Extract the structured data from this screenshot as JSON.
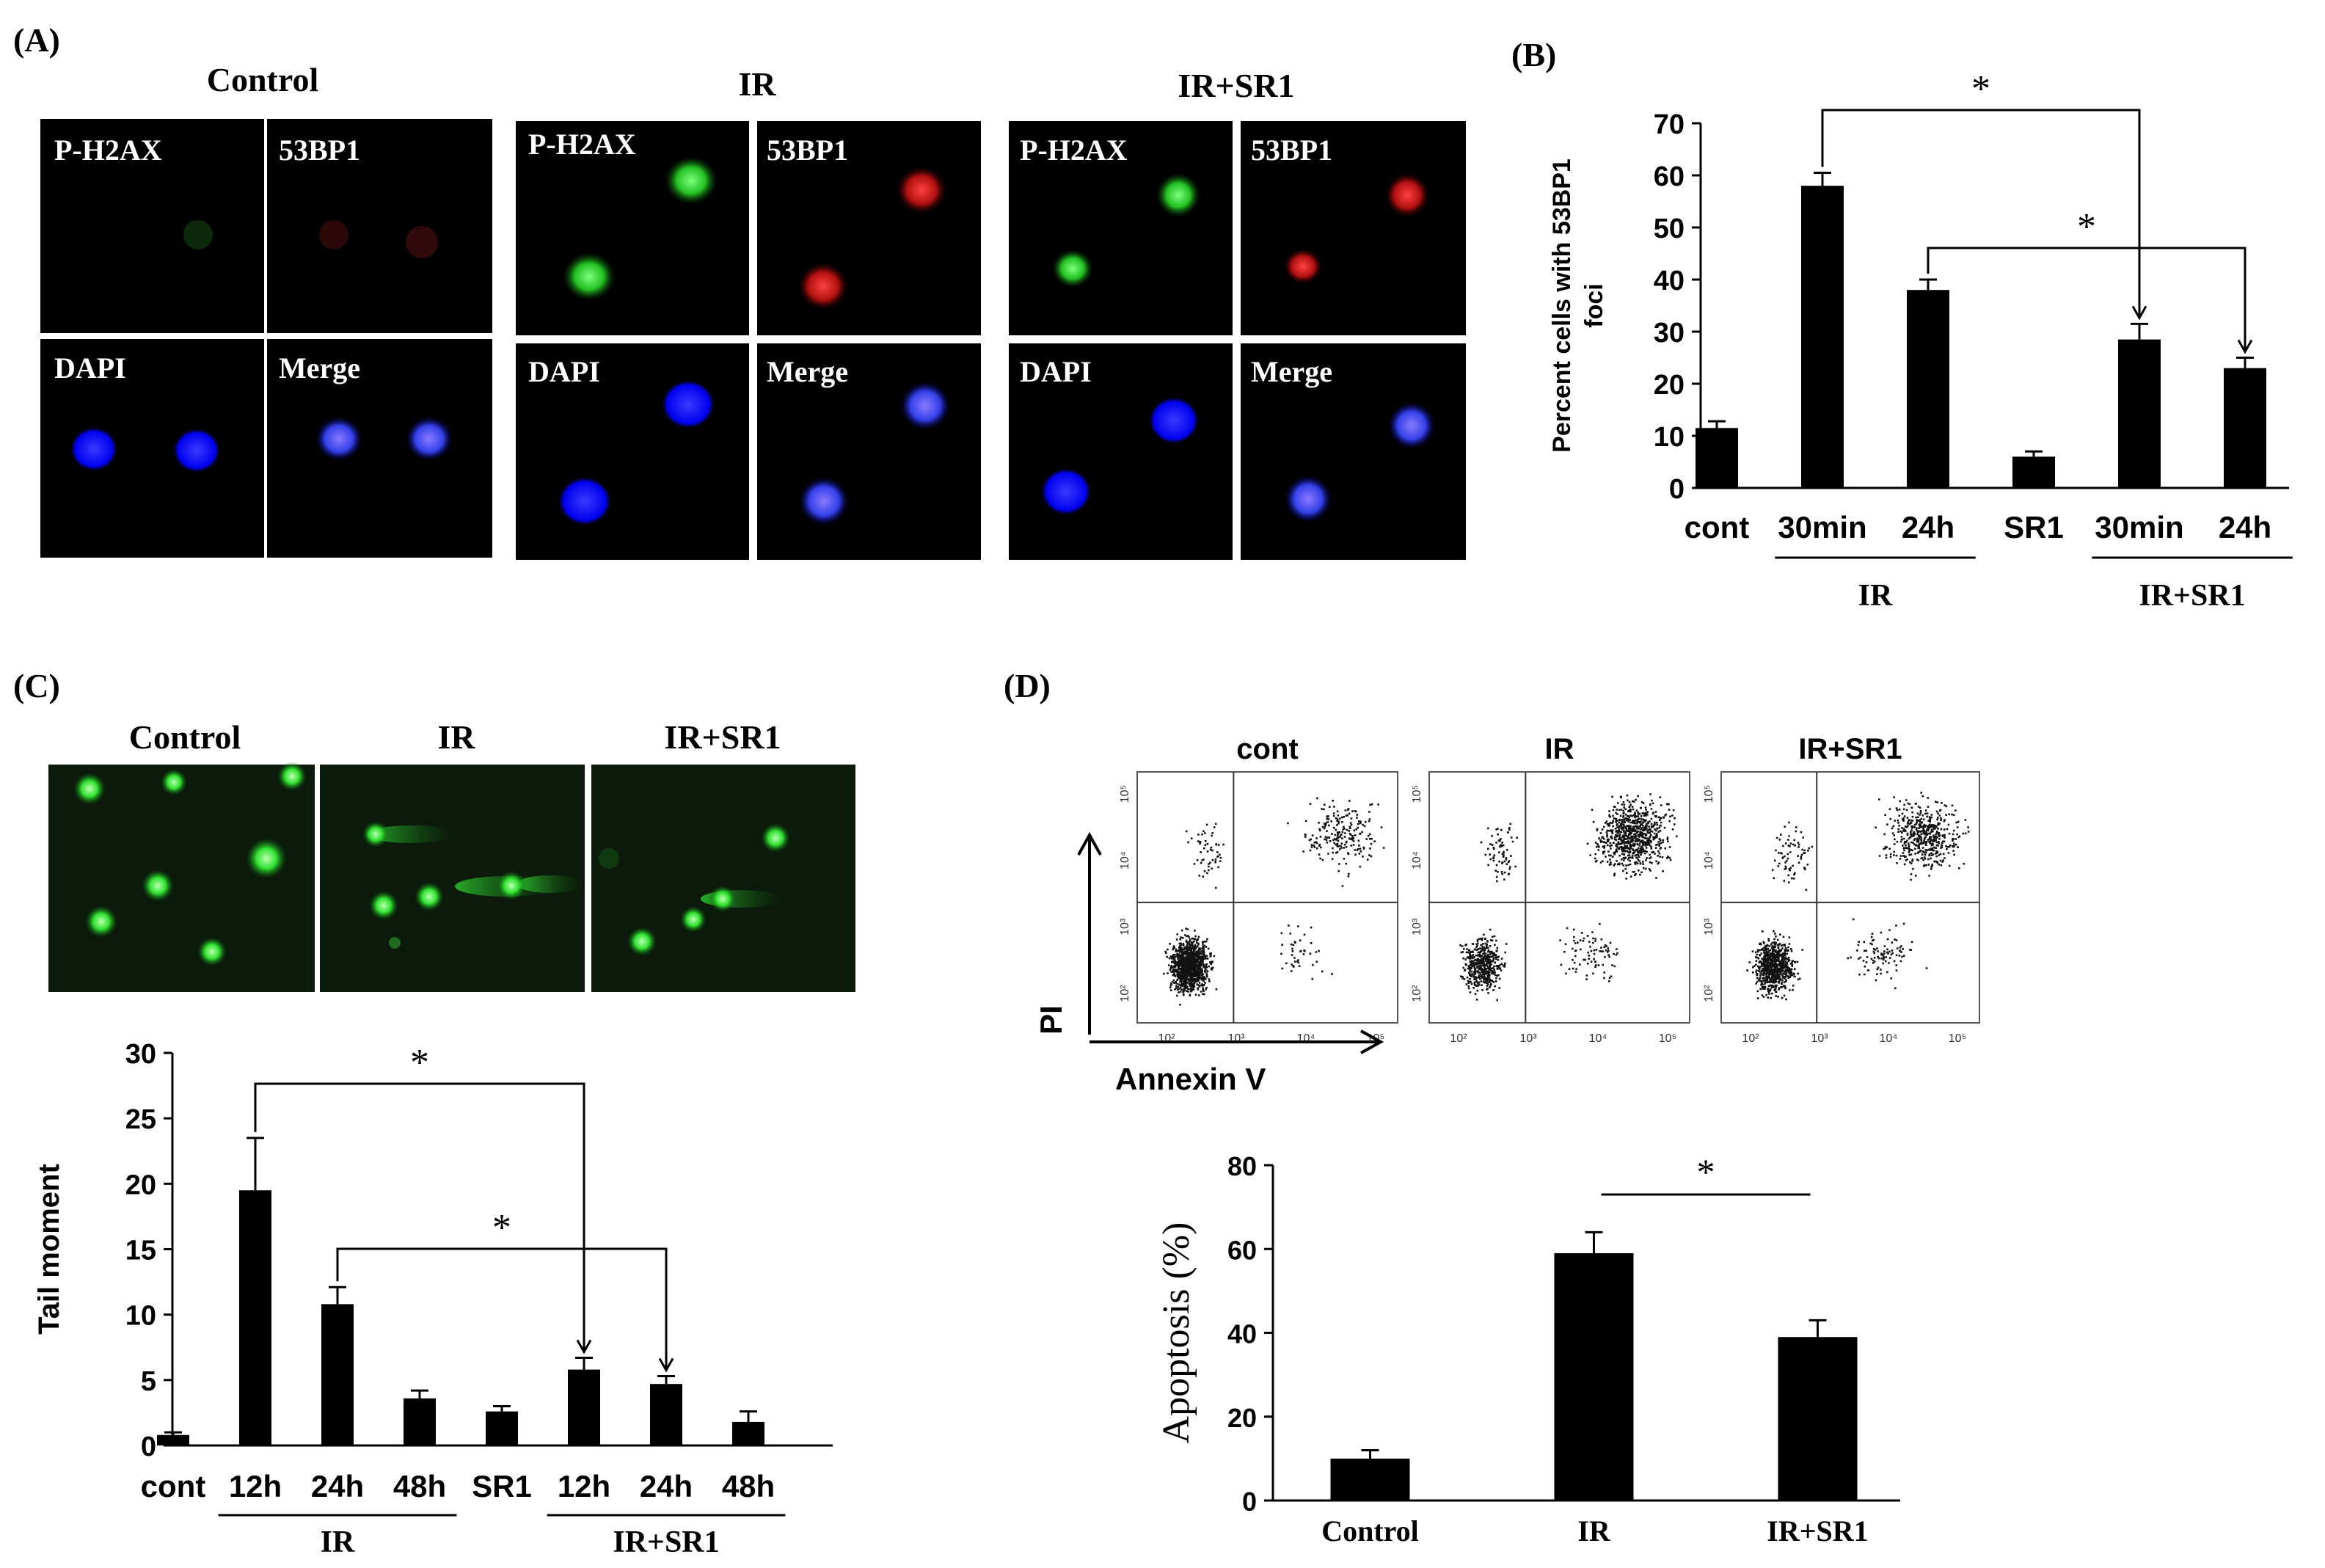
{
  "panels": {
    "A": {
      "label": "(A)",
      "groups": [
        {
          "title": "Control",
          "tiles": [
            "P-H2AX",
            "53BP1",
            "DAPI",
            "Merge"
          ]
        },
        {
          "title": "IR",
          "tiles": [
            "P-H2AX",
            "53BP1",
            "DAPI",
            "Merge"
          ]
        },
        {
          "title": "IR+SR1",
          "tiles": [
            "P-H2AX",
            "53BP1",
            "DAPI",
            "Merge"
          ]
        }
      ]
    },
    "C_images": {
      "label": "(C)",
      "titles": [
        "Control",
        "IR",
        "IR+SR1"
      ]
    },
    "D_flow": {
      "label": "(D)",
      "titles": [
        "cont",
        "IR",
        "IR+SR1"
      ],
      "y_axis": "PI",
      "x_axis": "Annexin V",
      "tick_labels": [
        "10²",
        "10³",
        "10⁴",
        "10⁵"
      ],
      "quadrant_fractions": [
        {
          "ll": 0.78,
          "ul": 0.04,
          "ur": 0.15,
          "lr": 0.03
        },
        {
          "ll": 0.34,
          "ul": 0.05,
          "ur": 0.55,
          "lr": 0.06
        },
        {
          "ll": 0.53,
          "ul": 0.05,
          "ur": 0.35,
          "lr": 0.07
        }
      ]
    }
  },
  "chart_data": [
    {
      "id": "B",
      "label": "(B)",
      "type": "bar",
      "ylabel": "Percent cells with 53BP1 foci",
      "ylim": [
        0,
        70
      ],
      "yticks": [
        0,
        10,
        20,
        30,
        40,
        50,
        60,
        70
      ],
      "categories": [
        "cont",
        "30min",
        "24h",
        "SR1",
        "30min",
        "24h"
      ],
      "values": [
        11.5,
        58,
        38,
        6,
        28.5,
        23
      ],
      "errors": [
        1.3,
        2.5,
        2,
        1,
        3,
        2
      ],
      "groups": [
        {
          "label": "IR",
          "from": 1,
          "to": 2
        },
        {
          "label": "IR+SR1",
          "from": 4,
          "to": 5
        }
      ],
      "significance": [
        {
          "from": 1,
          "to": 4,
          "marker": "*"
        },
        {
          "from": 2,
          "to": 5,
          "marker": "*"
        }
      ],
      "bar_color": "#000000"
    },
    {
      "id": "C",
      "type": "bar",
      "ylabel": "Tail moment",
      "ylim": [
        0,
        30
      ],
      "yticks": [
        0,
        5,
        10,
        15,
        20,
        25,
        30
      ],
      "categories": [
        "cont",
        "12h",
        "24h",
        "48h",
        "SR1",
        "12h",
        "24h",
        "48h"
      ],
      "values": [
        0.8,
        19.5,
        10.8,
        3.6,
        2.6,
        5.8,
        4.7,
        1.8
      ],
      "errors": [
        0.2,
        4,
        1.3,
        0.6,
        0.4,
        0.9,
        0.6,
        0.8
      ],
      "groups": [
        {
          "label": "IR",
          "from": 1,
          "to": 3
        },
        {
          "label": "IR+SR1",
          "from": 5,
          "to": 7
        }
      ],
      "significance": [
        {
          "from": 1,
          "to": 5,
          "marker": "*"
        },
        {
          "from": 2,
          "to": 6,
          "marker": "*"
        }
      ],
      "bar_color": "#000000"
    },
    {
      "id": "D",
      "type": "bar",
      "ylabel": "Apoptosis (%)",
      "ylim": [
        0,
        80
      ],
      "yticks": [
        0,
        20,
        40,
        60,
        80
      ],
      "categories": [
        "Control",
        "IR",
        "IR+SR1"
      ],
      "values": [
        10,
        59,
        39
      ],
      "errors": [
        2,
        5,
        4
      ],
      "significance": [
        {
          "from": 1,
          "to": 2,
          "marker": "*",
          "style": "line"
        }
      ],
      "bar_color": "#000000"
    }
  ]
}
